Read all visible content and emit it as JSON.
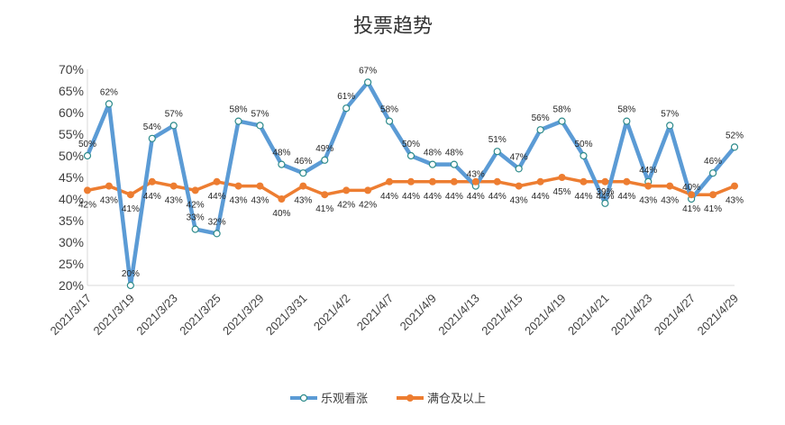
{
  "chart_data": {
    "type": "line",
    "title": "投票趋势",
    "xlabel": "",
    "ylabel": "",
    "ylim": [
      20,
      70
    ],
    "yticks": [
      "20%",
      "25%",
      "30%",
      "35%",
      "40%",
      "45%",
      "50%",
      "55%",
      "60%",
      "65%",
      "70%"
    ],
    "x_tick_labels": [
      "2021/3/17",
      "2021/3/19",
      "2021/3/23",
      "2021/3/25",
      "2021/3/29",
      "2021/3/31",
      "2021/4/2",
      "2021/4/7",
      "2021/4/9",
      "2021/4/13",
      "2021/4/15",
      "2021/4/19",
      "2021/4/21",
      "2021/4/23",
      "2021/4/27",
      "2021/4/29"
    ],
    "x_tick_every": 2,
    "point_count": 31,
    "legend_position": "bottom-center",
    "series": [
      {
        "name": "乐观看涨",
        "color": "#5B9BD5",
        "marker": "hollow-circle",
        "values": [
          50,
          62,
          20,
          54,
          57,
          33,
          32,
          58,
          57,
          48,
          46,
          49,
          61,
          67,
          58,
          50,
          48,
          48,
          43,
          51,
          47,
          56,
          58,
          50,
          39,
          58,
          44,
          57,
          40,
          46,
          52
        ],
        "labels": [
          "50%",
          "62%",
          "20%",
          "54%",
          "57%",
          "33%",
          "32%",
          "58%",
          "57%",
          "48%",
          "46%",
          "49%",
          "61%",
          "67%",
          "58%",
          "50%",
          "48%",
          "48%",
          "43%",
          "51%",
          "47%",
          "56%",
          "58%",
          "50%",
          "39%",
          "58%",
          "44%",
          "57%",
          "40%",
          "46%",
          "52%"
        ]
      },
      {
        "name": "满仓及以上",
        "color": "#ED7D31",
        "marker": "filled-circle",
        "values": [
          42,
          43,
          41,
          44,
          43,
          42,
          44,
          43,
          43,
          40,
          43,
          41,
          42,
          42,
          44,
          44,
          44,
          44,
          44,
          44,
          43,
          44,
          45,
          44,
          44,
          44,
          43,
          43,
          41,
          41,
          43
        ],
        "labels": [
          "42%",
          "43%",
          "41%",
          "44%",
          "43%",
          "42%",
          "44%",
          "43%",
          "43%",
          "40%",
          "43%",
          "41%",
          "42%",
          "42%",
          "44%",
          "44%",
          "44%",
          "44%",
          "44%",
          "44%",
          "43%",
          "44%",
          "45%",
          "44%",
          "44%",
          "44%",
          "43%",
          "43%",
          "41%",
          "41%",
          "43%"
        ]
      }
    ]
  }
}
